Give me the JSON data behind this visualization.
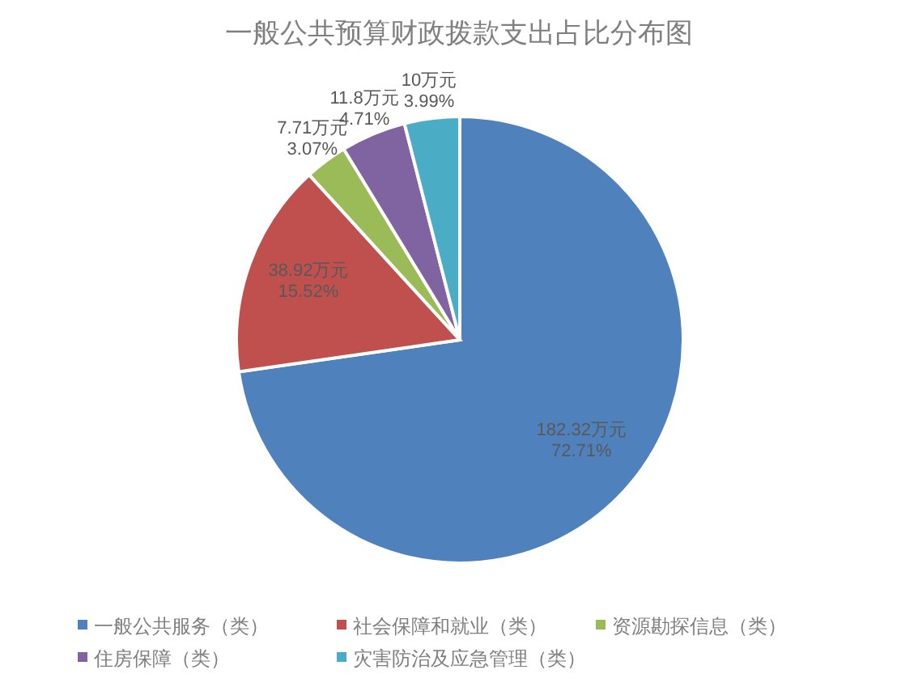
{
  "chart_data": {
    "type": "pie",
    "title": "一般公共预算财政拨款支出占比分布图",
    "categories": [
      "一般公共服务（类）",
      "社会保障和就业（类）",
      "资源勘探信息（类）",
      "住房保障（类）",
      "灾害防治及应急管理（类）"
    ],
    "values": [
      182.32,
      38.92,
      7.71,
      11.8,
      10
    ],
    "colors": [
      "#4f81bd",
      "#c0504d",
      "#9bbb59",
      "#8064a2",
      "#4bacc6"
    ],
    "value_labels": [
      "182.32万元\n72.71%",
      "38.92万元\n15.52%",
      "7.71万元\n3.07%",
      "11.8万元\n4.71%",
      "10万元\n3.99%"
    ],
    "legend": "bottom"
  }
}
